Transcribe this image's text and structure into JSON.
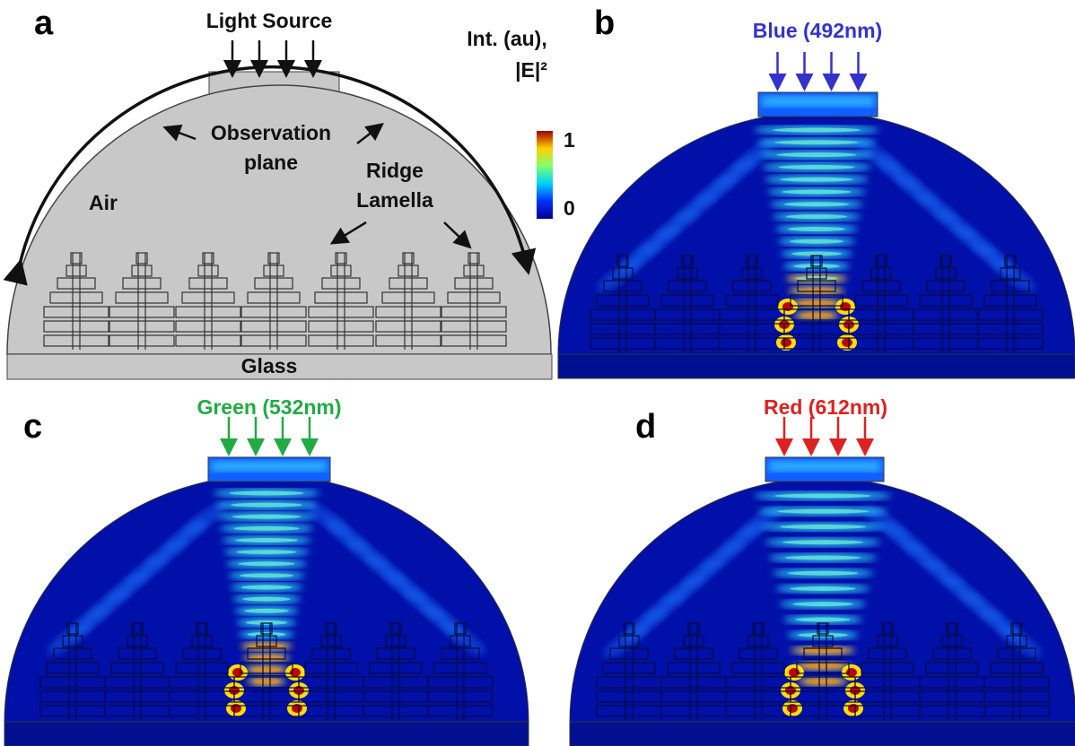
{
  "panels": {
    "a": {
      "label": "a",
      "source": "Light Source",
      "observation": [
        "Observation",
        "plane"
      ],
      "ridge": [
        "Ridge",
        "Lamella"
      ],
      "air": "Air",
      "glass": "Glass",
      "colorbar": {
        "title": [
          "Int. (au),",
          "|E|²"
        ],
        "max": 1,
        "min": 0
      }
    },
    "b": {
      "label": "b",
      "title": "Blue (492nm)"
    },
    "c": {
      "label": "c",
      "title": "Green (532nm)"
    },
    "d": {
      "label": "d",
      "title": "Red (612nm)"
    }
  }
}
